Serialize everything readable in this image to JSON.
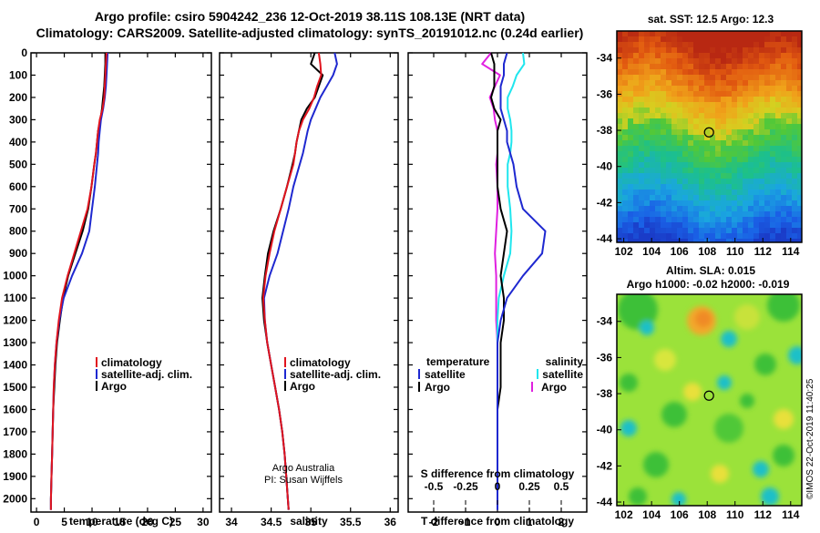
{
  "header": {
    "title_line1": "Argo profile: csiro 5904242_236 12-Oct-2019 38.11S 108.13E (NRT data)",
    "title_line2": "Climatology: CARS2009. Satellite-adjusted climatology: synTS_20191012.nc (0.24d earlier)"
  },
  "credits": {
    "line1": "Argo Australia",
    "line2": "PI: Susan Wijffels",
    "watermark": "©IMOS 22-Oct-2019 11:40:25"
  },
  "colors": {
    "climatology": "#e0141e",
    "satellite": "#1e28d0",
    "argo": "#000000",
    "s_satellite": "#20e6ee",
    "s_argo": "#e020e0"
  },
  "depth_axis": {
    "ticks": [
      0,
      100,
      200,
      300,
      400,
      500,
      600,
      700,
      800,
      900,
      1000,
      1100,
      1200,
      1300,
      1400,
      1500,
      1600,
      1700,
      1800,
      1900,
      2000
    ],
    "tick_labels": [
      "0",
      "100",
      "200",
      "300",
      "400",
      "500",
      "600",
      "700",
      "800",
      "900",
      "1000",
      "1100",
      "1200",
      "1300",
      "1400",
      "1500",
      "1600",
      "1700",
      "1800",
      "1900",
      "2000"
    ],
    "range": [
      0,
      2060
    ]
  },
  "chart_data": [
    {
      "type": "line",
      "id": "temperature",
      "xlabel": "temperature (deg C)",
      "xlim": [
        -1,
        31.5
      ],
      "xticks": [
        0,
        5,
        10,
        15,
        20,
        25,
        30
      ],
      "xtick_labels": [
        "0",
        "5",
        "10",
        "15",
        "20",
        "25",
        "30"
      ],
      "legend": [
        "climatology",
        "satellite-adj. clim.",
        "Argo"
      ],
      "legend_position": "center",
      "y": [
        0,
        50,
        100,
        150,
        200,
        250,
        300,
        350,
        400,
        450,
        500,
        600,
        700,
        800,
        900,
        1000,
        1100,
        1200,
        1300,
        1400,
        1500,
        1600,
        1700,
        1800,
        1900,
        2000,
        2050
      ],
      "series": [
        {
          "name": "climatology",
          "color": "#e0141e",
          "x": [
            12.6,
            12.5,
            12.4,
            12.3,
            12.2,
            11.9,
            11.4,
            11.1,
            10.9,
            10.7,
            10.4,
            9.9,
            9.2,
            8.0,
            6.8,
            5.6,
            4.6,
            4.0,
            3.6,
            3.3,
            3.1,
            3.0,
            2.9,
            2.8,
            2.7,
            2.6,
            2.6
          ]
        },
        {
          "name": "satellite-adj. clim.",
          "color": "#1e28d0",
          "x": [
            12.8,
            12.7,
            12.6,
            12.5,
            12.3,
            12.0,
            11.6,
            11.4,
            11.2,
            11.1,
            10.9,
            10.5,
            10.0,
            9.5,
            8.2,
            6.4,
            4.9,
            4.1,
            3.6,
            3.3,
            3.1,
            3.0,
            2.9,
            2.8,
            2.7,
            2.6,
            2.6
          ]
        },
        {
          "name": "Argo",
          "color": "#000000",
          "x": [
            12.4,
            12.4,
            12.3,
            12.2,
            12.0,
            11.8,
            11.5,
            11.1,
            10.9,
            10.7,
            10.4,
            9.9,
            9.3,
            8.3,
            7.0,
            5.7,
            4.8,
            4.2,
            3.7,
            3.4,
            3.2,
            3.0,
            2.9,
            2.8,
            2.7,
            2.6,
            2.6
          ]
        }
      ]
    },
    {
      "type": "line",
      "id": "salinity",
      "xlabel": "salinity",
      "xlim": [
        33.85,
        36.1
      ],
      "xticks": [
        34,
        34.5,
        35,
        35.5,
        36
      ],
      "xtick_labels": [
        "34",
        "34.5",
        "35",
        "35.5",
        "36"
      ],
      "legend": [
        "climatology",
        "satellite-adj. clim.",
        "Argo"
      ],
      "legend_position": "center",
      "y": [
        0,
        50,
        100,
        150,
        200,
        250,
        300,
        350,
        400,
        450,
        500,
        600,
        700,
        800,
        900,
        1000,
        1100,
        1200,
        1300,
        1400,
        1500,
        1600,
        1700,
        1800,
        1900,
        2000,
        2050
      ],
      "series": [
        {
          "name": "climatology",
          "color": "#e0141e",
          "x": [
            35.1,
            35.12,
            35.13,
            35.08,
            35.04,
            34.98,
            34.9,
            34.85,
            34.82,
            34.8,
            34.78,
            34.7,
            34.62,
            34.54,
            34.48,
            34.43,
            34.4,
            34.42,
            34.45,
            34.5,
            34.55,
            34.6,
            34.64,
            34.67,
            34.69,
            34.71,
            34.72
          ]
        },
        {
          "name": "satellite-adj. clim.",
          "color": "#1e28d0",
          "x": [
            35.3,
            35.33,
            35.28,
            35.2,
            35.12,
            35.06,
            35.0,
            34.96,
            34.93,
            34.9,
            34.86,
            34.78,
            34.72,
            34.65,
            34.58,
            34.48,
            34.41,
            34.42,
            34.45,
            34.5,
            34.55,
            34.6,
            34.64,
            34.67,
            34.69,
            34.71,
            34.72
          ]
        },
        {
          "name": "Argo",
          "color": "#000000",
          "x": [
            35.05,
            35.0,
            35.15,
            35.1,
            35.05,
            34.95,
            34.88,
            34.85,
            34.82,
            34.8,
            34.77,
            34.7,
            34.62,
            34.53,
            34.46,
            34.42,
            34.39,
            34.41,
            34.45,
            34.5,
            34.55,
            34.6,
            34.64,
            34.67,
            34.69,
            34.71,
            34.72
          ]
        }
      ]
    },
    {
      "type": "line",
      "id": "differences",
      "xlabel": "T difference from climatology",
      "xlim": [
        -2.8,
        2.8
      ],
      "xticks": [
        -2,
        -1,
        0,
        1,
        2
      ],
      "xtick_labels": [
        "-2",
        "-1",
        "0",
        "1",
        "2"
      ],
      "top_axis_label": "S difference from climatology",
      "top_ticks": [
        -0.5,
        -0.25,
        0,
        0.25,
        0.5
      ],
      "top_tick_labels": [
        "-0.5",
        "-0.25",
        "0",
        "0.25",
        "0.5"
      ],
      "legend": [
        "temperature",
        "satellite",
        "Argo",
        "salinity",
        "satellite",
        "Argo"
      ],
      "legend_position": "center",
      "y": [
        0,
        50,
        100,
        150,
        200,
        250,
        300,
        350,
        400,
        450,
        500,
        600,
        700,
        800,
        900,
        1000,
        1100,
        1200,
        1300,
        1400,
        1500,
        1600,
        1700,
        1800,
        1900,
        2000,
        2050
      ],
      "series": [
        {
          "name": "temperature satellite",
          "color": "#1e28d0",
          "x": [
            0.3,
            0.2,
            0.2,
            0.1,
            0.1,
            0.1,
            0.2,
            0.3,
            0.3,
            0.4,
            0.5,
            0.6,
            0.8,
            1.5,
            1.4,
            0.8,
            0.3,
            0.1,
            0.0,
            0.0,
            0.0,
            0.0,
            0.0,
            0.0,
            0.0,
            0.0,
            0.0
          ]
        },
        {
          "name": "temperature Argo",
          "color": "#000000",
          "x": [
            -0.2,
            -0.1,
            -0.1,
            -0.1,
            -0.2,
            -0.1,
            0.1,
            0.0,
            0.0,
            0.0,
            0.0,
            0.0,
            0.1,
            0.3,
            0.2,
            0.1,
            0.2,
            0.2,
            0.1,
            0.1,
            0.1,
            0.0,
            0.0,
            0.0,
            0.0,
            0.0,
            0.0
          ]
        },
        {
          "name": "salinity satellite",
          "color": "#20e6ee",
          "x": [
            0.2,
            0.21,
            0.15,
            0.12,
            0.08,
            0.08,
            0.1,
            0.11,
            0.11,
            0.1,
            0.08,
            0.08,
            0.1,
            0.11,
            0.1,
            0.05,
            0.01,
            0.0,
            0.0,
            0.0,
            0.0,
            0.0,
            0.0,
            0.0,
            0.0,
            0.0,
            0.0
          ]
        },
        {
          "name": "salinity Argo",
          "color": "#e020e0",
          "x": [
            -0.05,
            -0.12,
            0.02,
            -0.02,
            -0.06,
            -0.03,
            -0.02,
            0.0,
            0.0,
            0.0,
            -0.01,
            0.0,
            0.0,
            -0.01,
            -0.02,
            -0.01,
            -0.01,
            -0.01,
            0.0,
            0.0,
            0.0,
            0.0,
            0.0,
            0.0,
            0.0,
            0.0,
            0.0
          ]
        }
      ]
    },
    {
      "type": "heatmap",
      "id": "sst_map",
      "title": "sat. SST: 12.5 Argo: 12.3",
      "xlim": [
        101.5,
        114.8
      ],
      "ylim": [
        -44.2,
        -32.5
      ],
      "xticks": [
        102,
        104,
        106,
        108,
        110,
        112,
        114
      ],
      "xtick_labels": [
        "102",
        "104",
        "106",
        "108",
        "110",
        "112",
        "114"
      ],
      "yticks": [
        -34,
        -36,
        -38,
        -40,
        -42,
        -44
      ],
      "ytick_labels": [
        "-34",
        "-36",
        "-38",
        "-40",
        "-42",
        "-44"
      ],
      "marker": {
        "lon": 108.13,
        "lat": -38.11
      }
    },
    {
      "type": "heatmap",
      "id": "sla_map",
      "title": "Altim. SLA: 0.015",
      "subtitle": "Argo h1000: -0.02 h2000: -0.019",
      "xlim": [
        101.5,
        114.8
      ],
      "ylim": [
        -44.2,
        -32.5
      ],
      "xticks": [
        102,
        104,
        106,
        108,
        110,
        112,
        114
      ],
      "xtick_labels": [
        "102",
        "104",
        "106",
        "108",
        "110",
        "112",
        "114"
      ],
      "yticks": [
        -34,
        -36,
        -38,
        -40,
        -42,
        -44
      ],
      "ytick_labels": [
        "-34",
        "-36",
        "-38",
        "-40",
        "-42",
        "-44"
      ],
      "marker": {
        "lon": 108.13,
        "lat": -38.11
      }
    }
  ]
}
